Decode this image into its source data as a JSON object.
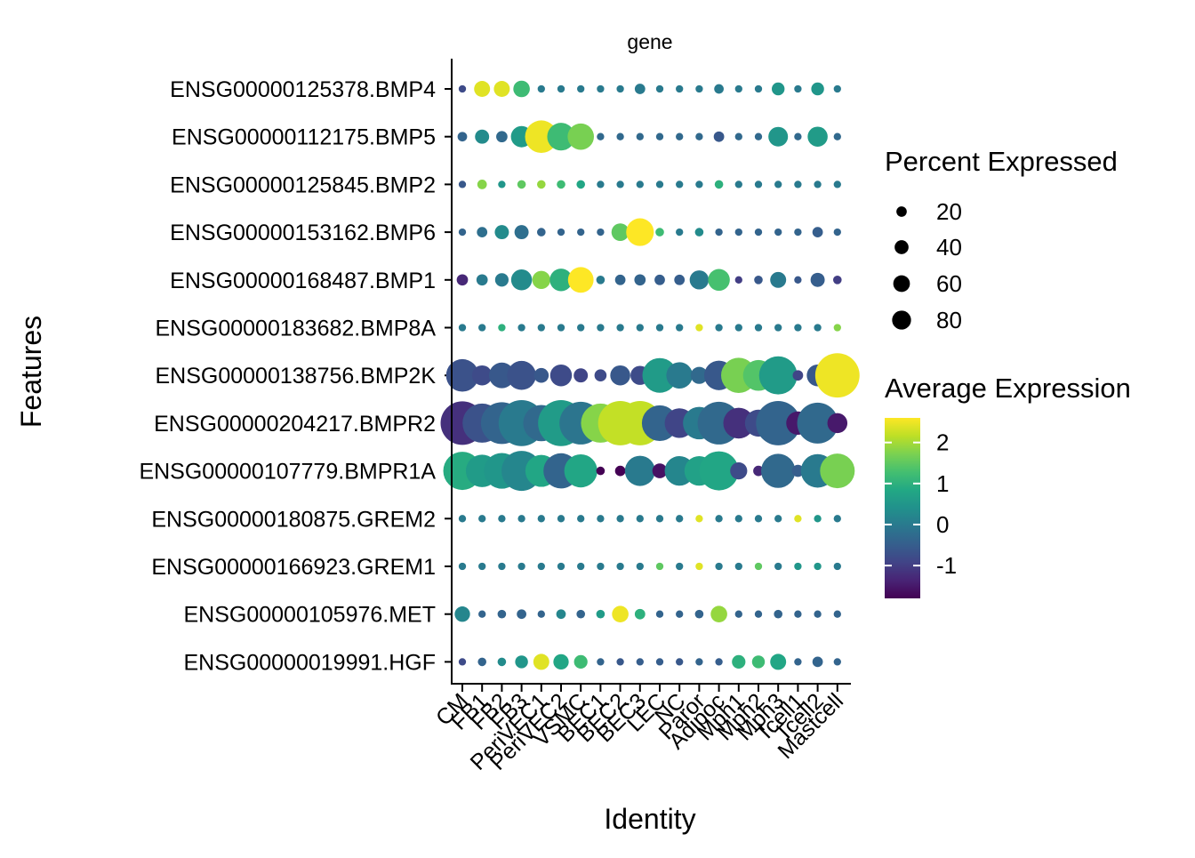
{
  "chart_data": {
    "type": "dotplot",
    "facet_label": "gene",
    "xlabel": "Identity",
    "ylabel": "Features",
    "categories": [
      "CM",
      "FB1",
      "FB2",
      "FB3",
      "PeriVEC1",
      "PeriVEC2",
      "VSMC",
      "BEC1",
      "BEC2",
      "BEC3",
      "LEC",
      "NC",
      "Paror",
      "Adipoc",
      "Mph1",
      "Mph2",
      "Mph3",
      "Tcell1",
      "Tcell2",
      "Mastcell"
    ],
    "features": [
      "ENSG00000125378.BMP4",
      "ENSG00000112175.BMP5",
      "ENSG00000125845.BMP2",
      "ENSG00000153162.BMP6",
      "ENSG00000168487.BMP1",
      "ENSG00000183682.BMP8A",
      "ENSG00000138756.BMP2K",
      "ENSG00000204217.BMPR2",
      "ENSG00000107779.BMPR1A",
      "ENSG00000180875.GREM2",
      "ENSG00000166923.GREM1",
      "ENSG00000105976.MET",
      "ENSG00000019991.HGF"
    ],
    "percent_expressed": [
      [
        3,
        14,
        14,
        15,
        3,
        3,
        3,
        3,
        3,
        6,
        3,
        3,
        3,
        5,
        3,
        3,
        9,
        3,
        9,
        3
      ],
      [
        5,
        11,
        7,
        25,
        58,
        42,
        38,
        3,
        3,
        3,
        3,
        3,
        3,
        6,
        3,
        3,
        21,
        3,
        22,
        3
      ],
      [
        3,
        5,
        3,
        4,
        4,
        4,
        4,
        3,
        3,
        3,
        3,
        3,
        3,
        4,
        3,
        3,
        3,
        3,
        3,
        3
      ],
      [
        3,
        6,
        11,
        11,
        4,
        3,
        3,
        3,
        17,
        42,
        4,
        3,
        4,
        3,
        3,
        3,
        3,
        3,
        6,
        3
      ],
      [
        7,
        7,
        10,
        24,
        18,
        28,
        36,
        4,
        6,
        7,
        6,
        6,
        20,
        26,
        3,
        4,
        14,
        3,
        11,
        4
      ],
      [
        3,
        3,
        3,
        3,
        3,
        3,
        3,
        3,
        3,
        3,
        3,
        3,
        3,
        3,
        3,
        3,
        3,
        3,
        3,
        3
      ],
      [
        58,
        22,
        36,
        46,
        12,
        26,
        11,
        8,
        22,
        20,
        66,
        38,
        16,
        48,
        68,
        52,
        80,
        6,
        26,
        108
      ],
      [
        104,
        84,
        96,
        116,
        72,
        116,
        100,
        84,
        108,
        108,
        70,
        48,
        58,
        100,
        52,
        40,
        108,
        30,
        92,
        22
      ],
      [
        80,
        58,
        70,
        88,
        56,
        68,
        60,
        4,
        6,
        50,
        12,
        48,
        48,
        84,
        16,
        6,
        64,
        8,
        62,
        66
      ],
      [
        3,
        3,
        3,
        3,
        3,
        3,
        3,
        3,
        3,
        3,
        3,
        3,
        3,
        3,
        3,
        3,
        3,
        3,
        3,
        3
      ],
      [
        3,
        3,
        3,
        3,
        3,
        3,
        3,
        3,
        3,
        3,
        3,
        3,
        3,
        3,
        3,
        3,
        3,
        3,
        3,
        3
      ],
      [
        13,
        3,
        4,
        5,
        3,
        5,
        4,
        4,
        15,
        6,
        3,
        3,
        4,
        15,
        3,
        3,
        4,
        3,
        3,
        3
      ],
      [
        3,
        4,
        4,
        9,
        14,
        13,
        10,
        3,
        3,
        3,
        3,
        3,
        3,
        3,
        10,
        9,
        14,
        3,
        6,
        3
      ]
    ],
    "average_expression": [
      [
        -0.8,
        2.4,
        2.4,
        1.2,
        0.0,
        0.0,
        0.0,
        0.0,
        0.0,
        0.0,
        0.0,
        0.0,
        0.0,
        0.0,
        0.0,
        0.0,
        0.5,
        0.0,
        0.5,
        0.0
      ],
      [
        -0.4,
        0.3,
        -0.3,
        0.6,
        2.5,
        1.2,
        1.7,
        -0.3,
        -0.3,
        -0.3,
        -0.3,
        -0.3,
        -0.3,
        -0.6,
        -0.3,
        -0.3,
        0.5,
        -0.3,
        0.6,
        -0.3
      ],
      [
        -0.6,
        1.8,
        0.5,
        1.5,
        1.9,
        1.2,
        0.8,
        0.0,
        0.0,
        0.0,
        0.0,
        0.0,
        0.0,
        1.0,
        0.0,
        0.0,
        0.0,
        0.0,
        0.0,
        0.0
      ],
      [
        -0.4,
        -0.2,
        0.3,
        -0.2,
        -0.4,
        -0.4,
        -0.4,
        -0.4,
        1.5,
        2.6,
        1.2,
        0.0,
        0.3,
        -0.4,
        -0.4,
        -0.4,
        -0.4,
        -0.4,
        -0.5,
        -0.4
      ],
      [
        -1.3,
        0.0,
        0.0,
        0.3,
        1.8,
        1.0,
        2.6,
        0.0,
        -0.4,
        -0.4,
        -0.5,
        -0.5,
        0.0,
        1.3,
        -1.0,
        -0.6,
        0.0,
        -0.6,
        -0.5,
        -1.0
      ],
      [
        0.0,
        0.0,
        1.0,
        0.0,
        0.0,
        0.0,
        0.0,
        0.0,
        0.0,
        0.0,
        0.0,
        0.0,
        2.4,
        0.0,
        0.0,
        0.0,
        0.0,
        0.0,
        0.0,
        1.8
      ],
      [
        -0.7,
        -0.8,
        -0.6,
        -0.7,
        -0.6,
        -0.8,
        -0.9,
        -0.8,
        -0.6,
        -0.8,
        0.6,
        0.0,
        -0.3,
        -0.6,
        1.7,
        1.4,
        0.6,
        -0.9,
        -0.6,
        2.5
      ],
      [
        -1.2,
        -0.7,
        -0.4,
        0.0,
        -0.3,
        0.6,
        -0.1,
        1.8,
        2.2,
        2.2,
        -0.4,
        -0.9,
        0.0,
        -0.3,
        -1.2,
        -0.8,
        -0.4,
        -1.5,
        -0.3,
        -1.5
      ],
      [
        0.9,
        0.6,
        0.5,
        0.2,
        0.8,
        -0.4,
        0.8,
        -1.8,
        -1.8,
        0.0,
        -1.6,
        0.2,
        0.7,
        0.8,
        -0.8,
        -1.3,
        -0.3,
        -0.5,
        0.0,
        1.7
      ],
      [
        0.0,
        0.0,
        0.0,
        0.0,
        0.0,
        0.0,
        0.0,
        0.0,
        0.0,
        0.0,
        0.0,
        0.0,
        2.4,
        0.0,
        0.0,
        0.0,
        0.0,
        2.4,
        0.5,
        0.0
      ],
      [
        0.0,
        0.0,
        0.0,
        0.0,
        0.0,
        0.0,
        0.0,
        0.0,
        0.0,
        0.0,
        1.5,
        0.0,
        2.4,
        0.0,
        0.0,
        1.5,
        0.0,
        0.5,
        0.5,
        0.0
      ],
      [
        0.2,
        -0.4,
        -0.4,
        -0.4,
        -0.4,
        0.2,
        -0.4,
        0.6,
        2.5,
        1.0,
        -0.4,
        -0.4,
        -0.4,
        1.9,
        -0.4,
        -0.4,
        -0.4,
        -0.4,
        -0.4,
        -0.4
      ],
      [
        -0.8,
        -0.4,
        0.3,
        0.5,
        2.4,
        0.8,
        1.2,
        -0.4,
        -0.6,
        -0.5,
        -0.5,
        -0.6,
        -0.4,
        -0.5,
        1.0,
        1.2,
        0.8,
        -0.4,
        -0.4,
        -0.4
      ]
    ],
    "size_legend": {
      "title": "Percent Expressed",
      "values": [
        20,
        40,
        60,
        80
      ],
      "labels": [
        "20",
        "40",
        "60",
        "80"
      ]
    },
    "color_legend": {
      "title": "Average Expression",
      "range": [
        -1.8,
        2.6
      ],
      "tick_values": [
        2,
        1,
        0,
        -1
      ],
      "tick_labels": [
        "2",
        "1",
        "0",
        "-1"
      ],
      "palette": "viridis"
    },
    "grid": false,
    "legend_position": "right"
  }
}
